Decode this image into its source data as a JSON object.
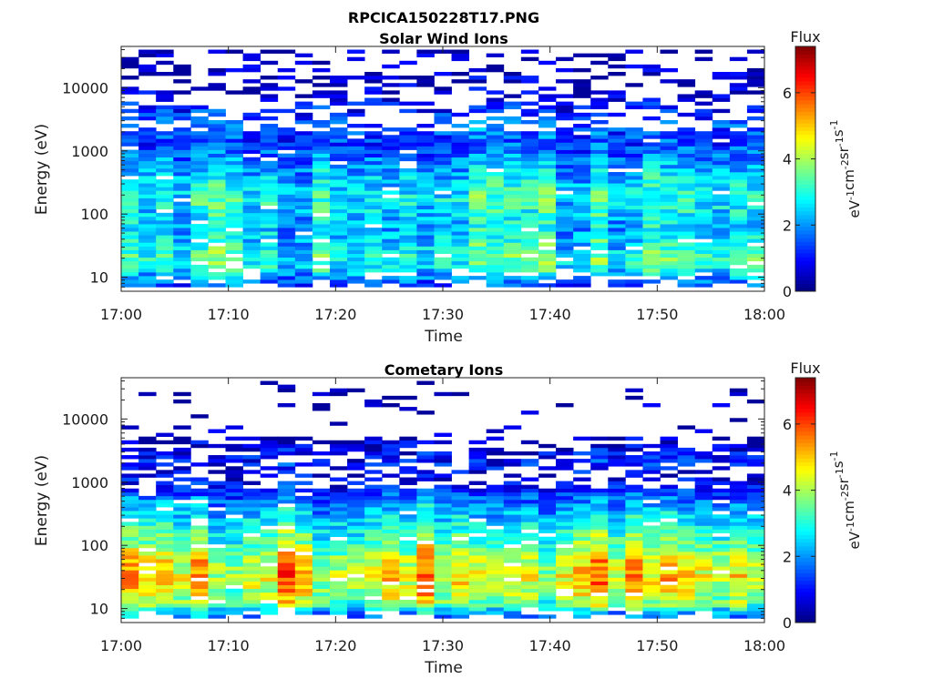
{
  "figure_title": "RPCICA150228T17.PNG",
  "chart_data": [
    {
      "type": "heatmap",
      "title": "Solar Wind Ions",
      "xlabel": "Time",
      "ylabel": "Energy (eV)",
      "x_ticks": [
        "17:00",
        "17:10",
        "17:20",
        "17:30",
        "17:40",
        "17:50",
        "18:00"
      ],
      "x_range": [
        "17:00",
        "18:00"
      ],
      "y_scale": "log",
      "y_ticks": [
        10,
        100,
        1000,
        10000
      ],
      "y_tick_labels": [
        "10",
        "100",
        "1000",
        "10000"
      ],
      "y_range": [
        6,
        45000
      ],
      "colorbar": {
        "label": "Flux",
        "units": "eV-1 cm-2 sr-1 s-1",
        "ticks": [
          0,
          2,
          4,
          6
        ],
        "tick_labels": [
          "0",
          "2",
          "4",
          "6"
        ],
        "range": [
          0,
          7.4
        ],
        "colormap": "jet"
      },
      "profile": [
        {
          "energy_eV": 8,
          "mean_flux": 1.6
        },
        {
          "energy_eV": 12,
          "mean_flux": 2.6
        },
        {
          "energy_eV": 20,
          "mean_flux": 3.2
        },
        {
          "energy_eV": 30,
          "mean_flux": 2.8
        },
        {
          "energy_eV": 60,
          "mean_flux": 2.4
        },
        {
          "energy_eV": 100,
          "mean_flux": 2.6
        },
        {
          "energy_eV": 150,
          "mean_flux": 2.9
        },
        {
          "energy_eV": 300,
          "mean_flux": 2.6
        },
        {
          "energy_eV": 600,
          "mean_flux": 2.1
        },
        {
          "energy_eV": 1200,
          "mean_flux": 1.4
        },
        {
          "energy_eV": 2500,
          "mean_flux": 1.6
        },
        {
          "energy_eV": 4000,
          "mean_flux": 1.2
        },
        {
          "energy_eV": 10000,
          "mean_flux": 0.5
        },
        {
          "energy_eV": 35000,
          "mean_flux": 0.4
        }
      ]
    },
    {
      "type": "heatmap",
      "title": "Cometary Ions",
      "xlabel": "Time",
      "ylabel": "Energy (eV)",
      "x_ticks": [
        "17:00",
        "17:10",
        "17:20",
        "17:30",
        "17:40",
        "17:50",
        "18:00"
      ],
      "x_range": [
        "17:00",
        "18:00"
      ],
      "y_scale": "log",
      "y_ticks": [
        10,
        100,
        1000,
        10000
      ],
      "y_tick_labels": [
        "10",
        "100",
        "1000",
        "10000"
      ],
      "y_range": [
        6,
        45000
      ],
      "colorbar": {
        "label": "Flux",
        "units": "eV-1 cm-2 sr-1 s-1",
        "ticks": [
          0,
          2,
          4,
          6
        ],
        "tick_labels": [
          "0",
          "2",
          "4",
          "6"
        ],
        "range": [
          0,
          7.4
        ],
        "colormap": "jet"
      },
      "profile": [
        {
          "energy_eV": 8,
          "mean_flux": 2.0
        },
        {
          "energy_eV": 12,
          "mean_flux": 4.0
        },
        {
          "energy_eV": 20,
          "mean_flux": 4.6
        },
        {
          "energy_eV": 30,
          "mean_flux": 5.0
        },
        {
          "energy_eV": 60,
          "mean_flux": 4.6
        },
        {
          "energy_eV": 100,
          "mean_flux": 3.8
        },
        {
          "energy_eV": 200,
          "mean_flux": 3.0
        },
        {
          "energy_eV": 400,
          "mean_flux": 2.3
        },
        {
          "energy_eV": 700,
          "mean_flux": 1.3
        },
        {
          "energy_eV": 1200,
          "mean_flux": 0.7
        },
        {
          "energy_eV": 2000,
          "mean_flux": 1.2
        },
        {
          "energy_eV": 4500,
          "mean_flux": 0.6
        },
        {
          "energy_eV": 9000,
          "mean_flux": 0.3
        }
      ]
    }
  ]
}
